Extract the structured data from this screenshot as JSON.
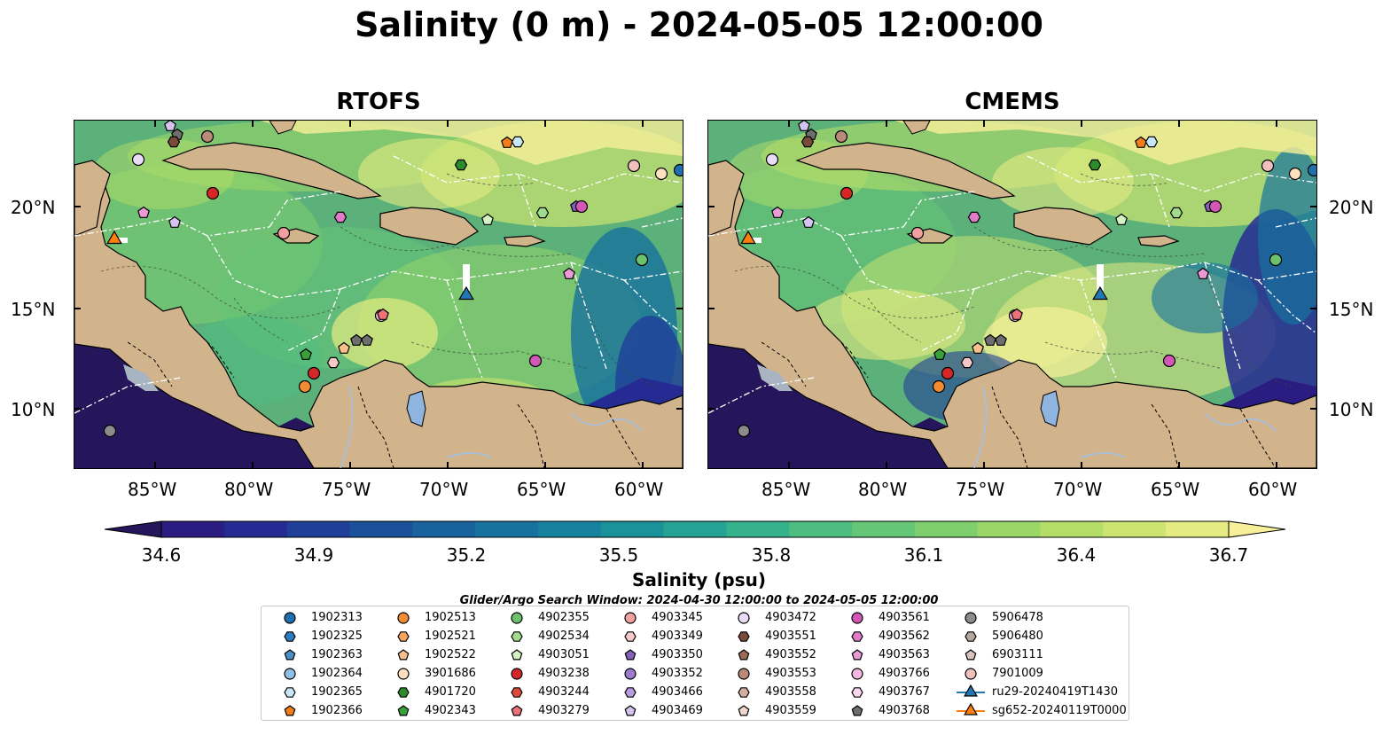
{
  "title": "Salinity (0 m) - 2024-05-05 12:00:00",
  "panels": [
    {
      "title": "RTOFS"
    },
    {
      "title": "CMEMS"
    }
  ],
  "lat_labels": [
    "20°N",
    "15°N",
    "10°N"
  ],
  "lon_labels": [
    "85°W",
    "80°W",
    "75°W",
    "70°W",
    "65°W",
    "60°W"
  ],
  "colorbar": {
    "label": "Salinity (psu)",
    "ticks": [
      "34.6",
      "34.9",
      "35.2",
      "35.5",
      "35.8",
      "36.1",
      "36.4",
      "36.7"
    ],
    "colors": [
      "#25155b",
      "#2a1c80",
      "#252b92",
      "#1f3e98",
      "#1b509b",
      "#18629d",
      "#17729e",
      "#17829d",
      "#1b929a",
      "#24a294",
      "#35b18b",
      "#4dbd80",
      "#66c677",
      "#80cf6e",
      "#9ad767",
      "#b4de68",
      "#cde570",
      "#e4eb82",
      "#f7ef9a"
    ]
  },
  "legend": {
    "title": "Glider/Argo Search Window: 2024-04-30 12:00:00 to 2024-05-05 12:00:00",
    "items": [
      {
        "label": "1902313",
        "color": "#1f6fae",
        "shape": "circle"
      },
      {
        "label": "1902325",
        "color": "#2f7bc0",
        "shape": "hexagon"
      },
      {
        "label": "1902363",
        "color": "#4a90c8",
        "shape": "pentagon"
      },
      {
        "label": "1902364",
        "color": "#8fc0e6",
        "shape": "circle"
      },
      {
        "label": "1902365",
        "color": "#c8e6f7",
        "shape": "hexagon"
      },
      {
        "label": "1902366",
        "color": "#f07d1a",
        "shape": "pentagon"
      },
      {
        "label": "1902513",
        "color": "#f18c33",
        "shape": "circle"
      },
      {
        "label": "1902521",
        "color": "#f7a45f",
        "shape": "hexagon"
      },
      {
        "label": "1902522",
        "color": "#f9c08e",
        "shape": "pentagon"
      },
      {
        "label": "3901686",
        "color": "#fde0be",
        "shape": "circle"
      },
      {
        "label": "4901720",
        "color": "#2c8c2c",
        "shape": "hexagon"
      },
      {
        "label": "4902343",
        "color": "#3aa13a",
        "shape": "pentagon"
      },
      {
        "label": "4902355",
        "color": "#6cc26c",
        "shape": "circle"
      },
      {
        "label": "4902534",
        "color": "#9fdc8e",
        "shape": "hexagon"
      },
      {
        "label": "4903051",
        "color": "#d4f2c6",
        "shape": "pentagon"
      },
      {
        "label": "4903238",
        "color": "#d62728",
        "shape": "circle"
      },
      {
        "label": "4903244",
        "color": "#df4a3c",
        "shape": "hexagon"
      },
      {
        "label": "4903279",
        "color": "#ec7378",
        "shape": "pentagon"
      },
      {
        "label": "4903345",
        "color": "#f2a0a0",
        "shape": "circle"
      },
      {
        "label": "4903349",
        "color": "#f8c8c8",
        "shape": "hexagon"
      },
      {
        "label": "4903350",
        "color": "#8560b8",
        "shape": "pentagon"
      },
      {
        "label": "4903352",
        "color": "#9d7bcc",
        "shape": "circle"
      },
      {
        "label": "4903466",
        "color": "#b89ae0",
        "shape": "hexagon"
      },
      {
        "label": "4903469",
        "color": "#d6c4f0",
        "shape": "pentagon"
      },
      {
        "label": "4903472",
        "color": "#eadcf8",
        "shape": "circle"
      },
      {
        "label": "4903551",
        "color": "#7a4a3a",
        "shape": "hexagon"
      },
      {
        "label": "4903552",
        "color": "#9c6a58",
        "shape": "pentagon"
      },
      {
        "label": "4903553",
        "color": "#b98a7a",
        "shape": "circle"
      },
      {
        "label": "4903558",
        "color": "#d6aea0",
        "shape": "hexagon"
      },
      {
        "label": "4903559",
        "color": "#f1d8cc",
        "shape": "pentagon"
      },
      {
        "label": "4903561",
        "color": "#d257b6",
        "shape": "circle"
      },
      {
        "label": "4903562",
        "color": "#e07cc8",
        "shape": "hexagon"
      },
      {
        "label": "4903563",
        "color": "#eb9ad6",
        "shape": "pentagon"
      },
      {
        "label": "4903766",
        "color": "#f4b8e2",
        "shape": "circle"
      },
      {
        "label": "4903767",
        "color": "#f9d8ee",
        "shape": "hexagon"
      },
      {
        "label": "4903768",
        "color": "#6e6e6e",
        "shape": "pentagon"
      },
      {
        "label": "5906478",
        "color": "#8c8c8c",
        "shape": "circle"
      },
      {
        "label": "5906480",
        "color": "#b6a6a0",
        "shape": "hexagon"
      },
      {
        "label": "6903111",
        "color": "#d8c4bc",
        "shape": "pentagon"
      },
      {
        "label": "7901009",
        "color": "#f0c0bc",
        "shape": "circle"
      },
      {
        "label": "ru29-20240419T1430",
        "color": "#1f77b4",
        "shape": "triangle"
      },
      {
        "label": "sg652-20240119T0000",
        "color": "#ff7f0e",
        "shape": "triangle"
      }
    ]
  },
  "colors": {
    "land": "#d2b48c",
    "lake": "#8fb4e0",
    "river": "#a0c0e8",
    "contour": "#3a4a3a",
    "eez_boundary": "#ffffff"
  }
}
